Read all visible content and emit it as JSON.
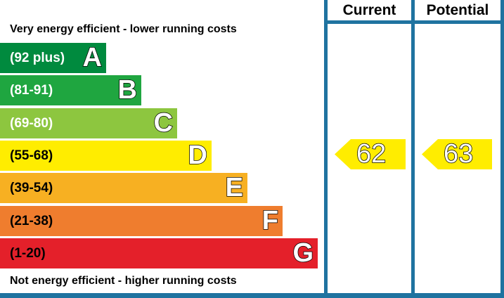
{
  "header": {
    "top_text": "Very energy efficient - lower running costs",
    "bottom_text": "Not energy efficient - higher running costs",
    "current_label": "Current",
    "potential_label": "Potential"
  },
  "colors": {
    "border": "#1f73a0",
    "A": "#008a3e",
    "B": "#1fa640",
    "C": "#8dc63f",
    "D": "#ffed00",
    "E": "#f7b022",
    "F": "#ef7d2e",
    "G": "#e4202a"
  },
  "chart_data": {
    "type": "bar",
    "title": "",
    "bands": [
      {
        "letter": "A",
        "range": "(92 plus)",
        "min": 92,
        "max": 100
      },
      {
        "letter": "B",
        "range": "(81-91)",
        "min": 81,
        "max": 91
      },
      {
        "letter": "C",
        "range": "(69-80)",
        "min": 69,
        "max": 80
      },
      {
        "letter": "D",
        "range": "(55-68)",
        "min": 55,
        "max": 68
      },
      {
        "letter": "E",
        "range": "(39-54)",
        "min": 39,
        "max": 54
      },
      {
        "letter": "F",
        "range": "(21-38)",
        "min": 21,
        "max": 38
      },
      {
        "letter": "G",
        "range": "(1-20)",
        "min": 1,
        "max": 20
      }
    ],
    "current": {
      "label": "Current",
      "value": 62,
      "band": "D"
    },
    "potential": {
      "label": "Potential",
      "value": 63,
      "band": "D"
    }
  }
}
